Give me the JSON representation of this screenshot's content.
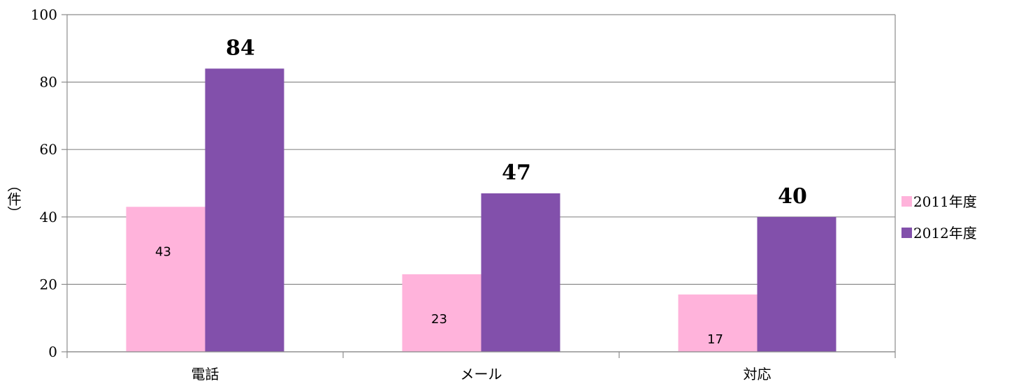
{
  "chart_data": {
    "type": "bar",
    "categories": [
      "電話",
      "メール",
      "対応"
    ],
    "series": [
      {
        "name": "2011年度",
        "values": [
          43,
          23,
          17
        ],
        "color": "#FFB3DB"
      },
      {
        "name": "2012年度",
        "values": [
          84,
          47,
          40
        ],
        "color": "#8250AB"
      }
    ],
    "ylabel": "（件）",
    "ylim": [
      0,
      100
    ],
    "yticks": [
      0,
      20,
      40,
      60,
      80,
      100
    ],
    "grid": true,
    "legend_position": "right",
    "data_labels": true
  }
}
